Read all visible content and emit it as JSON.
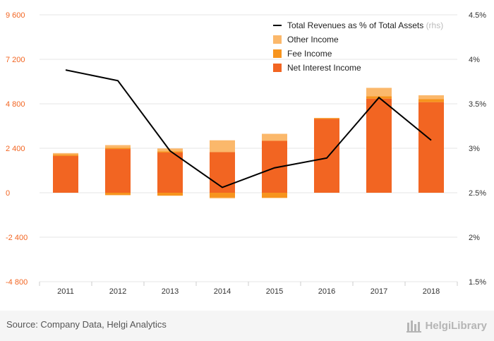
{
  "chart_data": {
    "type": "bar",
    "stacked": true,
    "categories": [
      "2011",
      "2012",
      "2013",
      "2014",
      "2015",
      "2016",
      "2017",
      "2018"
    ],
    "series": [
      {
        "name": "Net Interest Income",
        "color": "#f26522",
        "values": [
          1990,
          2360,
          2170,
          2190,
          2800,
          3980,
          5080,
          4890
        ]
      },
      {
        "name": "Fee Income",
        "color": "#f7941d",
        "values": [
          80,
          60,
          60,
          -260,
          -280,
          40,
          120,
          170
        ]
      },
      {
        "name": "Other Income",
        "color": "#fbb86b",
        "values": [
          70,
          150,
          160,
          640,
          380,
          20,
          460,
          200
        ]
      }
    ],
    "negative_fee_income": [
      0,
      -130,
      -160,
      -30,
      0,
      0,
      0,
      0
    ],
    "line_series": {
      "name": "Total Revenues as % of Total Assets",
      "suffix": "(rhs)",
      "color": "#000000",
      "values": [
        3.88,
        3.76,
        2.97,
        2.56,
        2.78,
        2.89,
        3.57,
        3.09
      ]
    },
    "y_left": {
      "min": -4800,
      "max": 9600,
      "ticks": [
        "-4 800",
        "-2 400",
        "0",
        "2 400",
        "4 800",
        "7 200",
        "9 600"
      ]
    },
    "y_right": {
      "min": 1.5,
      "max": 4.5,
      "ticks": [
        "1.5%",
        "2%",
        "2.5%",
        "3%",
        "3.5%",
        "4%",
        "4.5%"
      ]
    },
    "grid": true,
    "legend_position": "top-right",
    "left_tick_color": "#f26522"
  },
  "footer": {
    "source": "Source: Company Data, Helgi Analytics",
    "logo_text": "HelgiLibrary"
  }
}
